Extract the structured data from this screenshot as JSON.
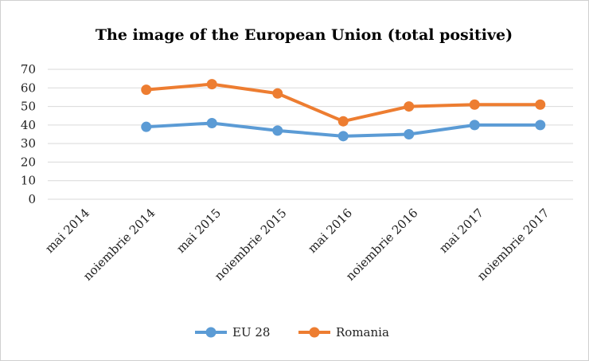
{
  "chart_data": {
    "type": "line",
    "title": "The image of the European Union (total positive)",
    "xlabel": "",
    "ylabel": "",
    "categories": [
      "mai 2014",
      "noiembrie 2014",
      "mai 2015",
      "noiembrie 2015",
      "mai 2016",
      "noiembrie 2016",
      "mai 2017",
      "noiembrie 2017"
    ],
    "ylim": [
      0,
      70
    ],
    "yticks": [
      0,
      10,
      20,
      30,
      40,
      50,
      60,
      70
    ],
    "grid": true,
    "legend": "bottom",
    "series": [
      {
        "name": "EU 28",
        "color": "#5b9bd5",
        "values": [
          null,
          39,
          41,
          37,
          34,
          35,
          40,
          40
        ]
      },
      {
        "name": "Romania",
        "color": "#ed7d31",
        "values": [
          null,
          59,
          62,
          57,
          42,
          50,
          51,
          51
        ]
      }
    ]
  }
}
